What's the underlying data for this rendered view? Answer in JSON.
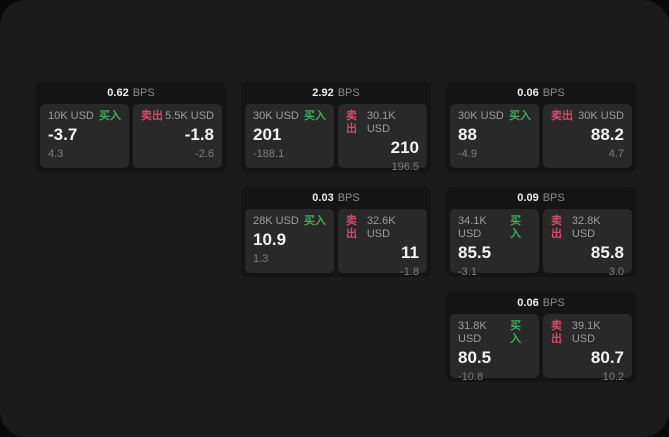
{
  "labels": {
    "bps": "BPS",
    "buy": "买入",
    "sell": "卖出"
  },
  "colors": {
    "buy_green": "#3eaa5b",
    "sell_red": "#d14b6a",
    "window_bg": "#1b1b1c",
    "card_bg": "#151516",
    "panel_bg": "#29292a"
  },
  "cards": [
    {
      "bps": "0.62",
      "buy": {
        "amount": "10K USD",
        "value": "-3.7",
        "sub": "4.3"
      },
      "sell": {
        "amount": "5.5K USD",
        "value": "-1.8",
        "sub": "-2.6"
      }
    },
    {
      "bps": "2.92",
      "buy": {
        "amount": "30K USD",
        "value": "201",
        "sub": "-188.1"
      },
      "sell": {
        "amount": "30.1K USD",
        "value": "210",
        "sub": "196.5"
      }
    },
    {
      "bps": "0.06",
      "buy": {
        "amount": "30K USD",
        "value": "88",
        "sub": "-4.9"
      },
      "sell": {
        "amount": "30K USD",
        "value": "88.2",
        "sub": "4.7"
      }
    },
    {
      "bps": "0.03",
      "buy": {
        "amount": "28K USD",
        "value": "10.9",
        "sub": "1.3"
      },
      "sell": {
        "amount": "32.6K USD",
        "value": "11",
        "sub": "-1.8"
      }
    },
    {
      "bps": "0.09",
      "buy": {
        "amount": "34.1K USD",
        "value": "85.5",
        "sub": "-3.1"
      },
      "sell": {
        "amount": "32.8K USD",
        "value": "85.8",
        "sub": "3.0"
      }
    },
    {
      "bps": "0.06",
      "buy": {
        "amount": "31.8K USD",
        "value": "80.5",
        "sub": "-10.8"
      },
      "sell": {
        "amount": "39.1K USD",
        "value": "80.7",
        "sub": "10.2"
      }
    }
  ]
}
